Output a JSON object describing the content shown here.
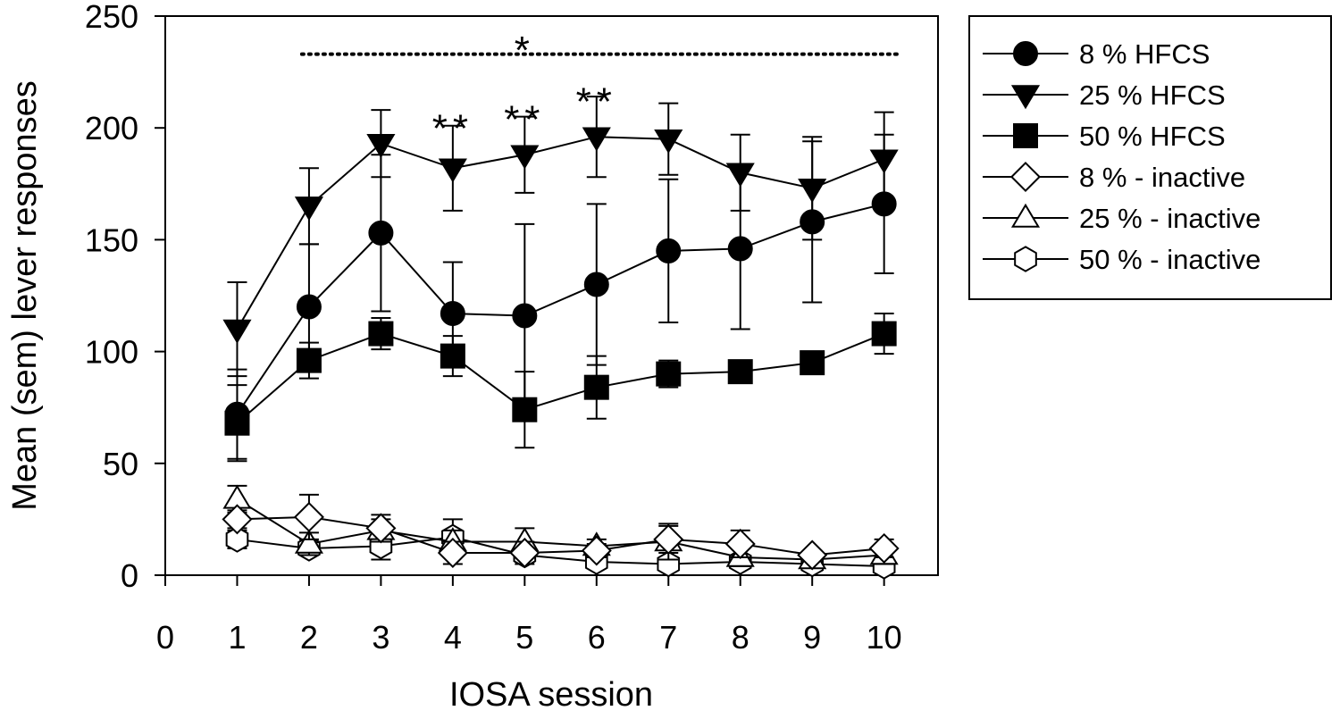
{
  "chart_data": {
    "type": "line",
    "title": "",
    "xlabel": "IOSA session",
    "ylabel": "Mean (sem) lever responses",
    "xlim": [
      0,
      10.75
    ],
    "ylim": [
      0,
      250
    ],
    "x_ticks": [
      "0",
      "1",
      "2",
      "3",
      "4",
      "5",
      "6",
      "7",
      "8",
      "9",
      "10"
    ],
    "y_ticks": [
      "0",
      "50",
      "100",
      "150",
      "200",
      "250"
    ],
    "grid": false,
    "legend_position": "outside-right",
    "x": [
      1,
      2,
      3,
      4,
      5,
      6,
      7,
      8,
      9,
      10
    ],
    "series": [
      {
        "name": "8 % HFCS",
        "marker": "circle",
        "fill": "#000000",
        "values": [
          72,
          120,
          153,
          117,
          116,
          130,
          145,
          146,
          158,
          166
        ],
        "sem": [
          20,
          28,
          35,
          23,
          41,
          36,
          32,
          36,
          36,
          31
        ]
      },
      {
        "name": "25 % HFCS",
        "marker": "triangle-down",
        "fill": "#000000",
        "values": [
          110,
          165,
          193,
          182,
          188,
          196,
          195,
          180,
          173,
          186
        ],
        "sem": [
          21,
          17,
          15,
          19,
          17,
          18,
          16,
          17,
          23,
          21
        ]
      },
      {
        "name": "50 % HFCS",
        "marker": "square",
        "fill": "#000000",
        "values": [
          68,
          96,
          108,
          98,
          74,
          84,
          90,
          91,
          95,
          108
        ],
        "sem": [
          17,
          8,
          7,
          9,
          17,
          14,
          6,
          2,
          2,
          9
        ]
      },
      {
        "name": "8 % - inactive",
        "marker": "diamond",
        "fill": "#ffffff",
        "values": [
          25,
          26,
          21,
          10,
          10,
          11,
          16,
          14,
          9,
          12
        ],
        "sem": [
          4,
          10,
          6,
          5,
          5,
          3,
          6,
          6,
          2,
          4
        ]
      },
      {
        "name": "25 % - inactive",
        "marker": "triangle-up",
        "fill": "#ffffff",
        "values": [
          34,
          14,
          20,
          15,
          15,
          13,
          15,
          8,
          7,
          9
        ],
        "sem": [
          6,
          5,
          5,
          5,
          6,
          3,
          8,
          4,
          3,
          4
        ]
      },
      {
        "name": "50 % - inactive",
        "marker": "hexagon",
        "fill": "#ffffff",
        "values": [
          16,
          12,
          13,
          17,
          9,
          6,
          5,
          6,
          5,
          4
        ],
        "sem": [
          4,
          3,
          6,
          8,
          3,
          3,
          3,
          3,
          3,
          3
        ]
      }
    ],
    "annotations": [
      {
        "text": "*",
        "x": 5,
        "y": 240,
        "kind": "overall"
      },
      {
        "text": "**",
        "x": 4,
        "y": 205
      },
      {
        "text": "**",
        "x": 5,
        "y": 209
      },
      {
        "text": "**",
        "x": 6,
        "y": 217
      }
    ],
    "significance_line": {
      "x_start": 1.9,
      "x_end": 10.2,
      "y": 233,
      "style": "dotted"
    }
  }
}
